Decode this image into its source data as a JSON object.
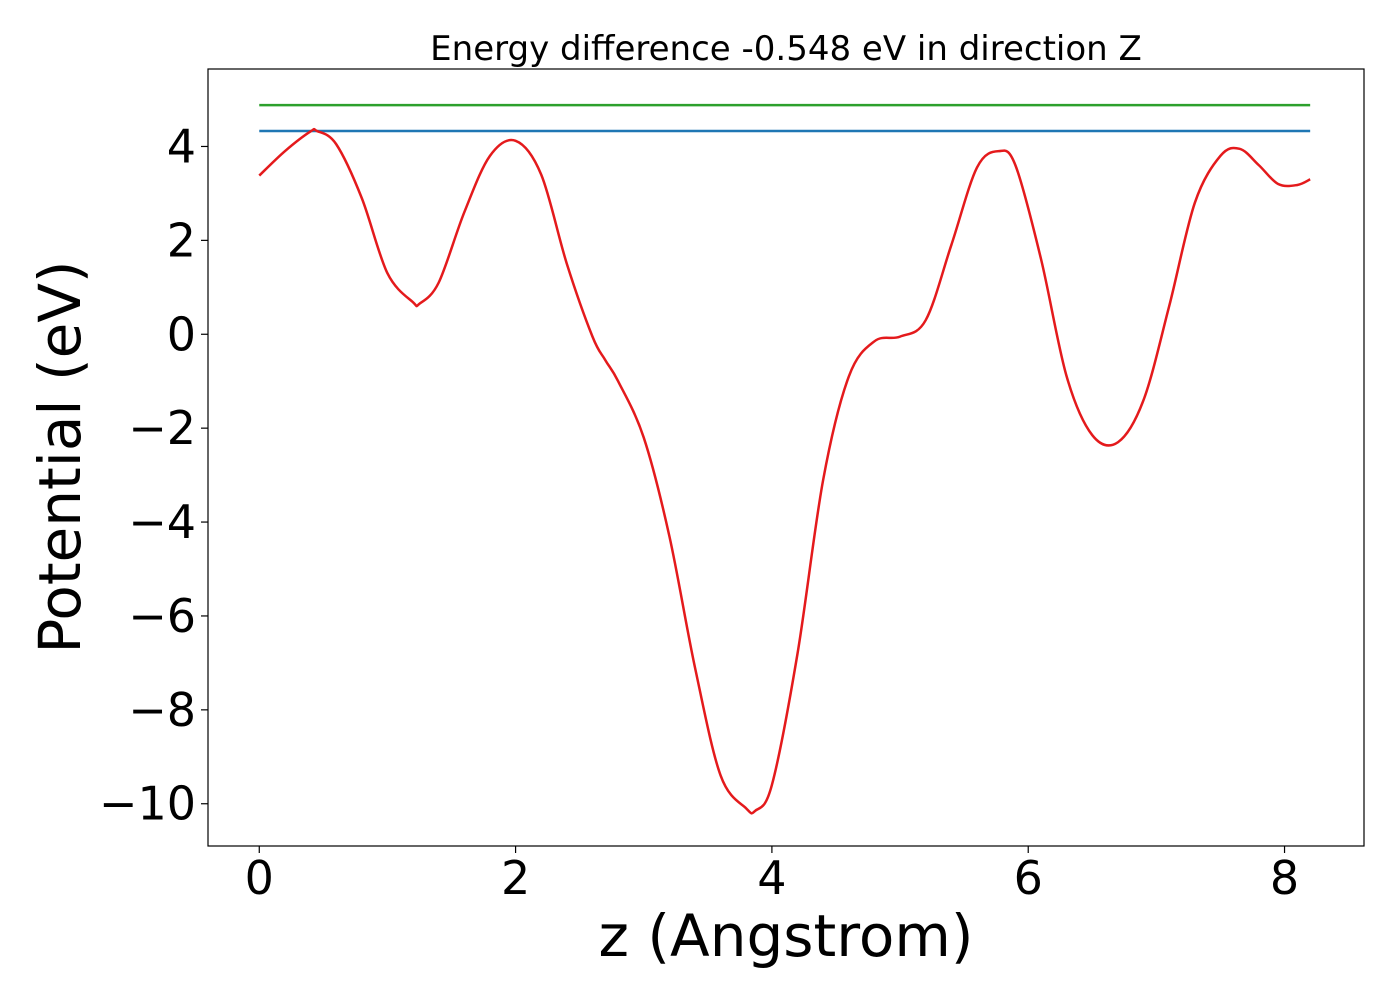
{
  "chart_data": {
    "type": "line",
    "title": "Energy difference -0.548 eV in direction Z",
    "xlabel": "z (Angstrom)",
    "ylabel": "Potential (eV)",
    "xlim": [
      -0.4,
      8.62
    ],
    "ylim": [
      -10.9,
      5.65
    ],
    "grid": false,
    "xticks": [
      0,
      2,
      4,
      6,
      8
    ],
    "yticks": [
      -10,
      -8,
      -6,
      -4,
      -2,
      0,
      2,
      4
    ],
    "xtick_labels": [
      "0",
      "2",
      "4",
      "6",
      "8"
    ],
    "ytick_labels": [
      "−10",
      "−8",
      "−6",
      "−4",
      "−2",
      "0",
      "2",
      "4"
    ],
    "series": [
      {
        "color": "#2ca02c",
        "x": [
          0,
          8.2
        ],
        "y": [
          4.88,
          4.88
        ]
      },
      {
        "color": "#1f77b4",
        "x": [
          0,
          8.2
        ],
        "y": [
          4.33,
          4.33
        ]
      },
      {
        "color": "#e41a1c",
        "x": [
          0,
          0.2,
          0.4,
          0.45,
          0.6,
          0.8,
          1.0,
          1.2,
          1.25,
          1.4,
          1.6,
          1.8,
          2.0,
          2.2,
          2.4,
          2.6,
          2.7,
          2.8,
          3.0,
          3.2,
          3.4,
          3.6,
          3.8,
          3.87,
          4.0,
          4.2,
          4.4,
          4.6,
          4.8,
          5.0,
          5.2,
          5.4,
          5.6,
          5.77,
          5.9,
          6.1,
          6.3,
          6.5,
          6.7,
          6.9,
          7.1,
          7.3,
          7.5,
          7.65,
          7.8,
          7.95,
          8.1,
          8.2
        ],
        "y": [
          3.38,
          3.9,
          4.32,
          4.33,
          4.05,
          2.9,
          1.3,
          0.68,
          0.65,
          1.1,
          2.6,
          3.8,
          4.12,
          3.4,
          1.5,
          -0.05,
          -0.55,
          -1.0,
          -2.2,
          -4.3,
          -7.1,
          -9.4,
          -10.1,
          -10.15,
          -9.6,
          -6.8,
          -3.1,
          -0.9,
          -0.15,
          -0.05,
          0.3,
          1.9,
          3.55,
          3.9,
          3.6,
          1.6,
          -0.9,
          -2.15,
          -2.3,
          -1.4,
          0.6,
          2.8,
          3.8,
          3.95,
          3.6,
          3.2,
          3.18,
          3.3
        ]
      }
    ]
  }
}
